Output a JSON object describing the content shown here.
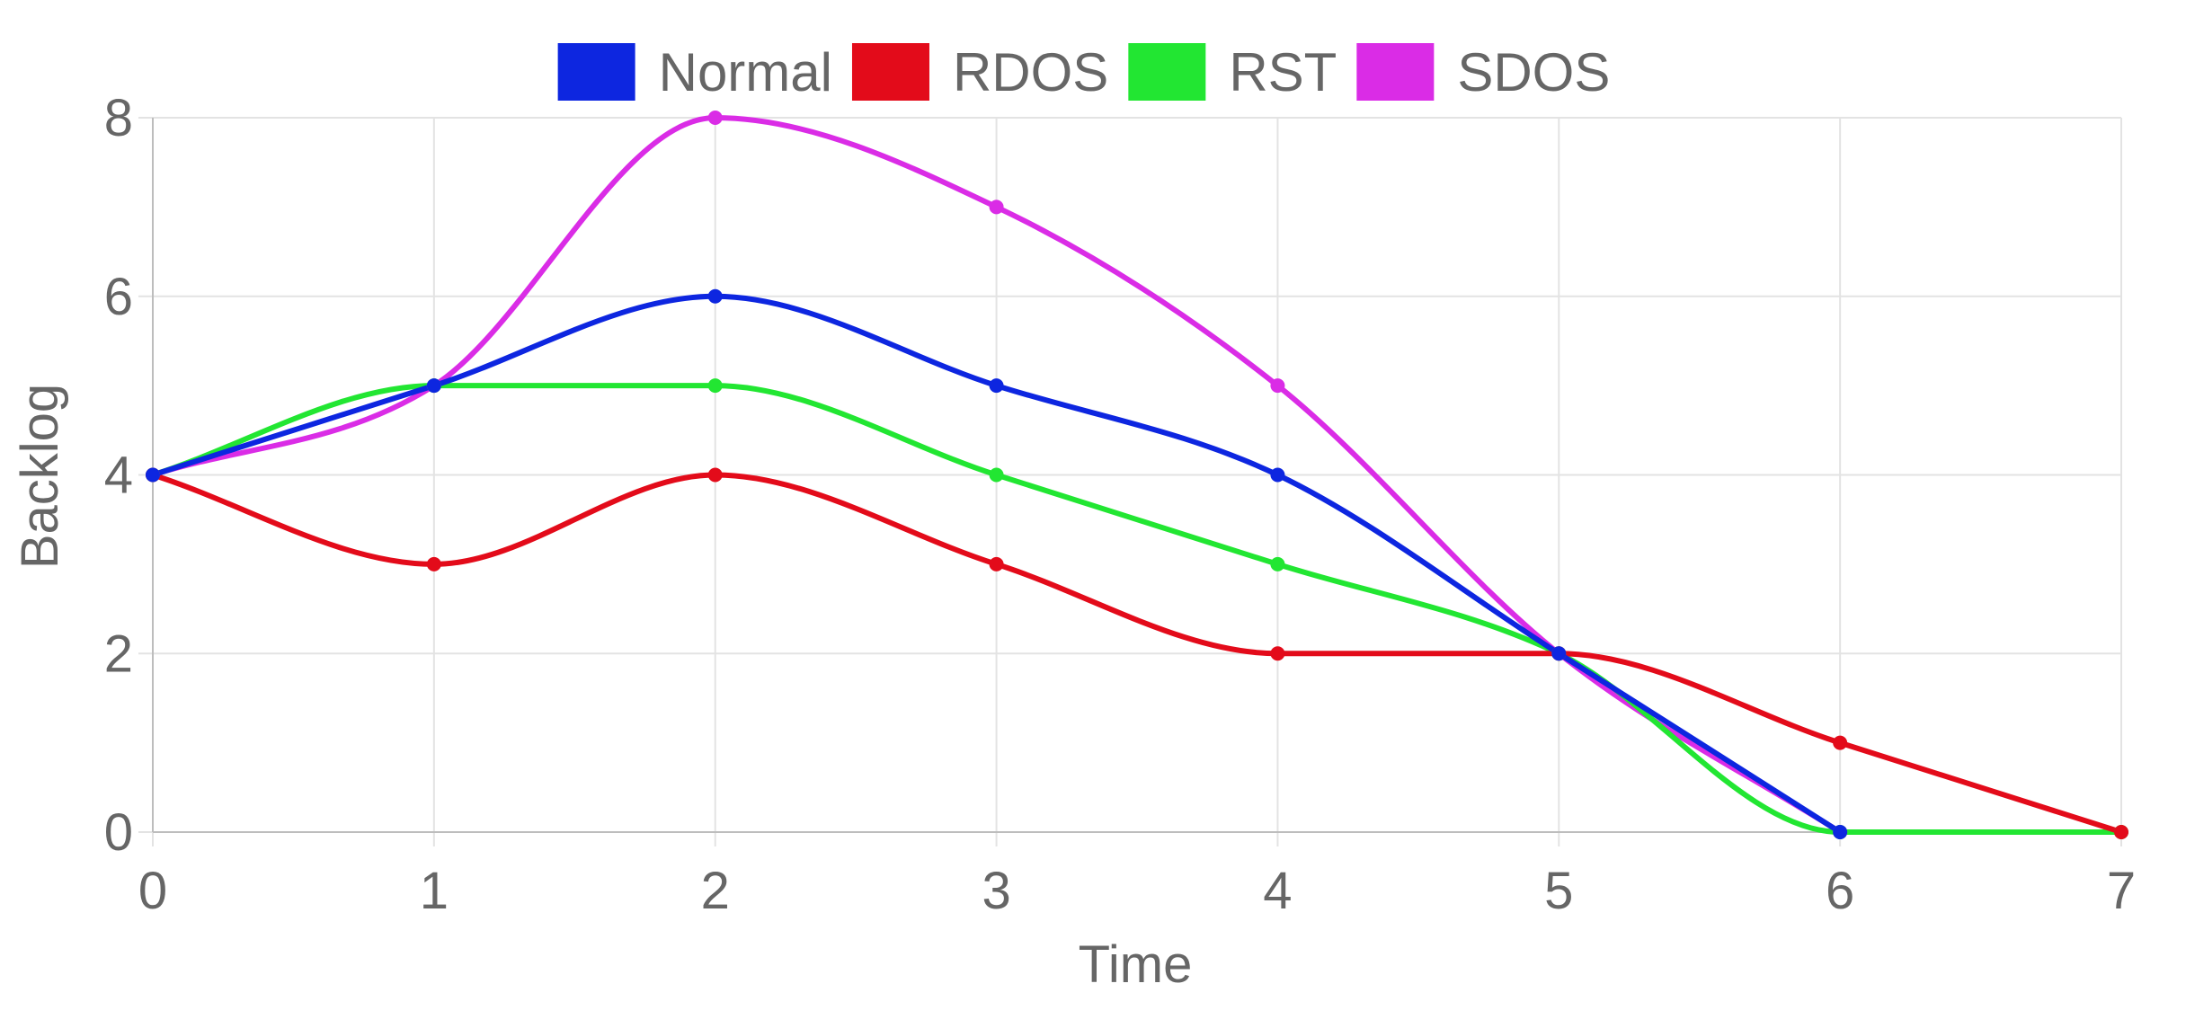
{
  "chart_data": {
    "type": "line",
    "title": "",
    "xlabel": "Time",
    "ylabel": "Backlog",
    "x": [
      0,
      1,
      2,
      3,
      4,
      5,
      6,
      7
    ],
    "x_ticks": [
      "0",
      "1",
      "2",
      "3",
      "4",
      "5",
      "6",
      "7"
    ],
    "y_ticks": [
      "0",
      "2",
      "4",
      "6",
      "8"
    ],
    "xlim": [
      0,
      7
    ],
    "ylim": [
      0,
      8
    ],
    "grid": true,
    "legend_position": "top-center",
    "series": [
      {
        "name": "Normal",
        "color": "#0d26e0",
        "values": [
          4,
          5,
          6,
          5,
          4,
          2,
          0,
          null
        ]
      },
      {
        "name": "RDOS",
        "color": "#e30b1a",
        "values": [
          4,
          3,
          4,
          3,
          2,
          2,
          1,
          0
        ]
      },
      {
        "name": "RST",
        "color": "#22e632",
        "values": [
          4,
          5,
          5,
          4,
          3,
          2,
          0,
          0
        ]
      },
      {
        "name": "SDOS",
        "color": "#da2ce6",
        "values": [
          4,
          5,
          8,
          7,
          5,
          2,
          0,
          null
        ]
      }
    ]
  }
}
